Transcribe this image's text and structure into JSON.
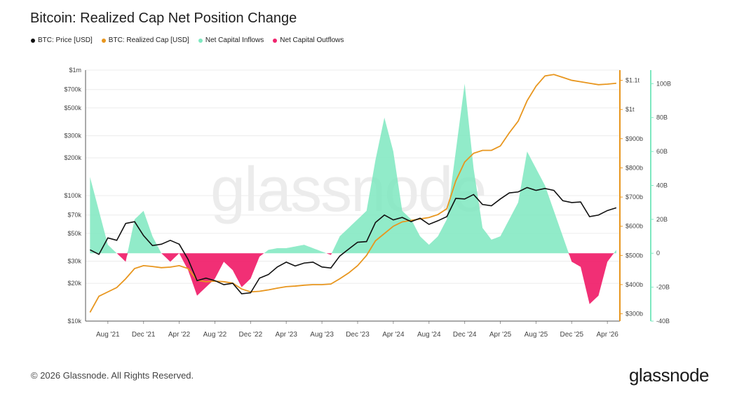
{
  "title": "Bitcoin: Realized Cap Net Position Change",
  "legend": [
    {
      "label": "BTC: Price [USD]",
      "color": "#111111"
    },
    {
      "label": "BTC: Realized Cap [USD]",
      "color": "#e8961e"
    },
    {
      "label": "Net Capital Inflows",
      "color": "#7ee8c0"
    },
    {
      "label": "Net Capital Outflows",
      "color": "#f0246e"
    }
  ],
  "footer": "© 2026 Glassnode. All Rights Reserved.",
  "brand": "glassnode",
  "watermark": "glassnode",
  "chart_data": {
    "type": "line",
    "x_start": "2021-06",
    "x_end": "2026-05",
    "x_ticks": [
      "Aug '21",
      "Dec '21",
      "Apr '22",
      "Aug '22",
      "Dec '22",
      "Apr '23",
      "Aug '23",
      "Dec '23",
      "Apr '24",
      "Aug '24",
      "Dec '24",
      "Apr '25",
      "Aug '25",
      "Dec '25",
      "Apr '26"
    ],
    "y_left": {
      "scale": "log",
      "ticks": [
        "$10k",
        "$20k",
        "$30k",
        "$50k",
        "$70k",
        "$100k",
        "$200k",
        "$300k",
        "$500k",
        "$700k",
        "$1m"
      ],
      "tick_values": [
        10000,
        20000,
        30000,
        50000,
        70000,
        100000,
        200000,
        300000,
        500000,
        700000,
        1000000
      ]
    },
    "y_right_realized_cap": {
      "ticks": [
        "$300b",
        "$400b",
        "$500b",
        "$600b",
        "$700b",
        "$800b",
        "$900b",
        "$1t",
        "$1.1t"
      ],
      "tick_values": [
        300,
        400,
        500,
        600,
        700,
        800,
        900,
        1000,
        1100
      ],
      "range": [
        275,
        1135
      ]
    },
    "y_right_net_change": {
      "ticks": [
        "-40B",
        "-20B",
        "0",
        "20B",
        "40B",
        "60B",
        "80B",
        "100B"
      ],
      "tick_values": [
        -40,
        -20,
        0,
        20,
        40,
        60,
        80,
        100
      ],
      "range": [
        -40,
        108
      ]
    },
    "price_usd": [
      [
        "2021-06",
        37000
      ],
      [
        "2021-07",
        34000
      ],
      [
        "2021-08",
        46000
      ],
      [
        "2021-09",
        44000
      ],
      [
        "2021-10",
        60000
      ],
      [
        "2021-11",
        62000
      ],
      [
        "2021-12",
        48000
      ],
      [
        "2022-01",
        40000
      ],
      [
        "2022-02",
        41000
      ],
      [
        "2022-03",
        44000
      ],
      [
        "2022-04",
        41000
      ],
      [
        "2022-05",
        31000
      ],
      [
        "2022-06",
        21000
      ],
      [
        "2022-07",
        22000
      ],
      [
        "2022-08",
        21000
      ],
      [
        "2022-09",
        19500
      ],
      [
        "2022-10",
        20000
      ],
      [
        "2022-11",
        16500
      ],
      [
        "2022-12",
        16800
      ],
      [
        "2023-01",
        22000
      ],
      [
        "2023-02",
        23500
      ],
      [
        "2023-03",
        27000
      ],
      [
        "2023-04",
        29500
      ],
      [
        "2023-05",
        27500
      ],
      [
        "2023-06",
        29000
      ],
      [
        "2023-07",
        29500
      ],
      [
        "2023-08",
        27000
      ],
      [
        "2023-09",
        26500
      ],
      [
        "2023-10",
        33000
      ],
      [
        "2023-11",
        37500
      ],
      [
        "2023-12",
        42500
      ],
      [
        "2024-01",
        43000
      ],
      [
        "2024-02",
        61000
      ],
      [
        "2024-03",
        70000
      ],
      [
        "2024-04",
        64000
      ],
      [
        "2024-05",
        67000
      ],
      [
        "2024-06",
        62000
      ],
      [
        "2024-07",
        66000
      ],
      [
        "2024-08",
        59000
      ],
      [
        "2024-09",
        63000
      ],
      [
        "2024-10",
        68000
      ],
      [
        "2024-11",
        95000
      ],
      [
        "2024-12",
        94000
      ],
      [
        "2025-01",
        102000
      ],
      [
        "2025-02",
        85000
      ],
      [
        "2025-03",
        83000
      ],
      [
        "2025-04",
        94000
      ],
      [
        "2025-05",
        105000
      ],
      [
        "2025-06",
        107000
      ],
      [
        "2025-07",
        116000
      ],
      [
        "2025-08",
        110000
      ],
      [
        "2025-09",
        114000
      ],
      [
        "2025-10",
        110000
      ],
      [
        "2025-11",
        91000
      ],
      [
        "2025-12",
        88000
      ],
      [
        "2026-01",
        89000
      ],
      [
        "2026-02",
        68000
      ],
      [
        "2026-03",
        70000
      ],
      [
        "2026-04",
        76000
      ],
      [
        "2026-05",
        80000
      ]
    ],
    "realized_cap_billion_usd": [
      [
        "2021-06",
        305
      ],
      [
        "2021-07",
        360
      ],
      [
        "2021-08",
        375
      ],
      [
        "2021-09",
        390
      ],
      [
        "2021-10",
        420
      ],
      [
        "2021-11",
        455
      ],
      [
        "2021-12",
        465
      ],
      [
        "2022-01",
        462
      ],
      [
        "2022-02",
        458
      ],
      [
        "2022-03",
        460
      ],
      [
        "2022-04",
        465
      ],
      [
        "2022-05",
        455
      ],
      [
        "2022-06",
        415
      ],
      [
        "2022-07",
        410
      ],
      [
        "2022-08",
        412
      ],
      [
        "2022-09",
        410
      ],
      [
        "2022-10",
        405
      ],
      [
        "2022-11",
        385
      ],
      [
        "2022-12",
        375
      ],
      [
        "2023-01",
        377
      ],
      [
        "2023-02",
        382
      ],
      [
        "2023-03",
        388
      ],
      [
        "2023-04",
        393
      ],
      [
        "2023-05",
        395
      ],
      [
        "2023-06",
        398
      ],
      [
        "2023-07",
        400
      ],
      [
        "2023-08",
        400
      ],
      [
        "2023-09",
        402
      ],
      [
        "2023-10",
        420
      ],
      [
        "2023-11",
        440
      ],
      [
        "2023-12",
        465
      ],
      [
        "2024-01",
        500
      ],
      [
        "2024-02",
        550
      ],
      [
        "2024-03",
        575
      ],
      [
        "2024-04",
        600
      ],
      [
        "2024-05",
        615
      ],
      [
        "2024-06",
        620
      ],
      [
        "2024-07",
        625
      ],
      [
        "2024-08",
        630
      ],
      [
        "2024-09",
        640
      ],
      [
        "2024-10",
        660
      ],
      [
        "2024-11",
        755
      ],
      [
        "2024-12",
        820
      ],
      [
        "2025-01",
        850
      ],
      [
        "2025-02",
        860
      ],
      [
        "2025-03",
        860
      ],
      [
        "2025-04",
        875
      ],
      [
        "2025-05",
        920
      ],
      [
        "2025-06",
        960
      ],
      [
        "2025-07",
        1030
      ],
      [
        "2025-08",
        1080
      ],
      [
        "2025-09",
        1115
      ],
      [
        "2025-10",
        1120
      ],
      [
        "2025-11",
        1110
      ],
      [
        "2025-12",
        1100
      ],
      [
        "2026-01",
        1095
      ],
      [
        "2026-02",
        1090
      ],
      [
        "2026-03",
        1085
      ],
      [
        "2026-04",
        1087
      ],
      [
        "2026-05",
        1090
      ]
    ],
    "net_position_change_billion_usd": [
      [
        "2021-06",
        45
      ],
      [
        "2021-07",
        25
      ],
      [
        "2021-08",
        5
      ],
      [
        "2021-09",
        0
      ],
      [
        "2021-10",
        -5
      ],
      [
        "2021-11",
        20
      ],
      [
        "2021-12",
        25
      ],
      [
        "2022-01",
        10
      ],
      [
        "2022-02",
        0
      ],
      [
        "2022-03",
        -5
      ],
      [
        "2022-04",
        0
      ],
      [
        "2022-05",
        -10
      ],
      [
        "2022-06",
        -25
      ],
      [
        "2022-07",
        -20
      ],
      [
        "2022-08",
        -15
      ],
      [
        "2022-09",
        -5
      ],
      [
        "2022-10",
        -10
      ],
      [
        "2022-11",
        -20
      ],
      [
        "2022-12",
        -15
      ],
      [
        "2023-01",
        -2
      ],
      [
        "2023-02",
        2
      ],
      [
        "2023-03",
        3
      ],
      [
        "2023-04",
        3
      ],
      [
        "2023-05",
        4
      ],
      [
        "2023-06",
        5
      ],
      [
        "2023-07",
        3
      ],
      [
        "2023-08",
        1
      ],
      [
        "2023-09",
        -1
      ],
      [
        "2023-10",
        10
      ],
      [
        "2023-11",
        15
      ],
      [
        "2023-12",
        20
      ],
      [
        "2024-01",
        25
      ],
      [
        "2024-02",
        55
      ],
      [
        "2024-03",
        80
      ],
      [
        "2024-04",
        60
      ],
      [
        "2024-05",
        25
      ],
      [
        "2024-06",
        20
      ],
      [
        "2024-07",
        10
      ],
      [
        "2024-08",
        5
      ],
      [
        "2024-09",
        10
      ],
      [
        "2024-10",
        20
      ],
      [
        "2024-11",
        60
      ],
      [
        "2024-12",
        100
      ],
      [
        "2025-01",
        50
      ],
      [
        "2025-02",
        15
      ],
      [
        "2025-03",
        8
      ],
      [
        "2025-04",
        10
      ],
      [
        "2025-05",
        20
      ],
      [
        "2025-06",
        30
      ],
      [
        "2025-07",
        60
      ],
      [
        "2025-08",
        50
      ],
      [
        "2025-09",
        40
      ],
      [
        "2025-10",
        25
      ],
      [
        "2025-11",
        10
      ],
      [
        "2025-12",
        -5
      ],
      [
        "2026-01",
        -8
      ],
      [
        "2026-02",
        -30
      ],
      [
        "2026-03",
        -25
      ],
      [
        "2026-04",
        -5
      ],
      [
        "2026-05",
        2
      ]
    ]
  }
}
